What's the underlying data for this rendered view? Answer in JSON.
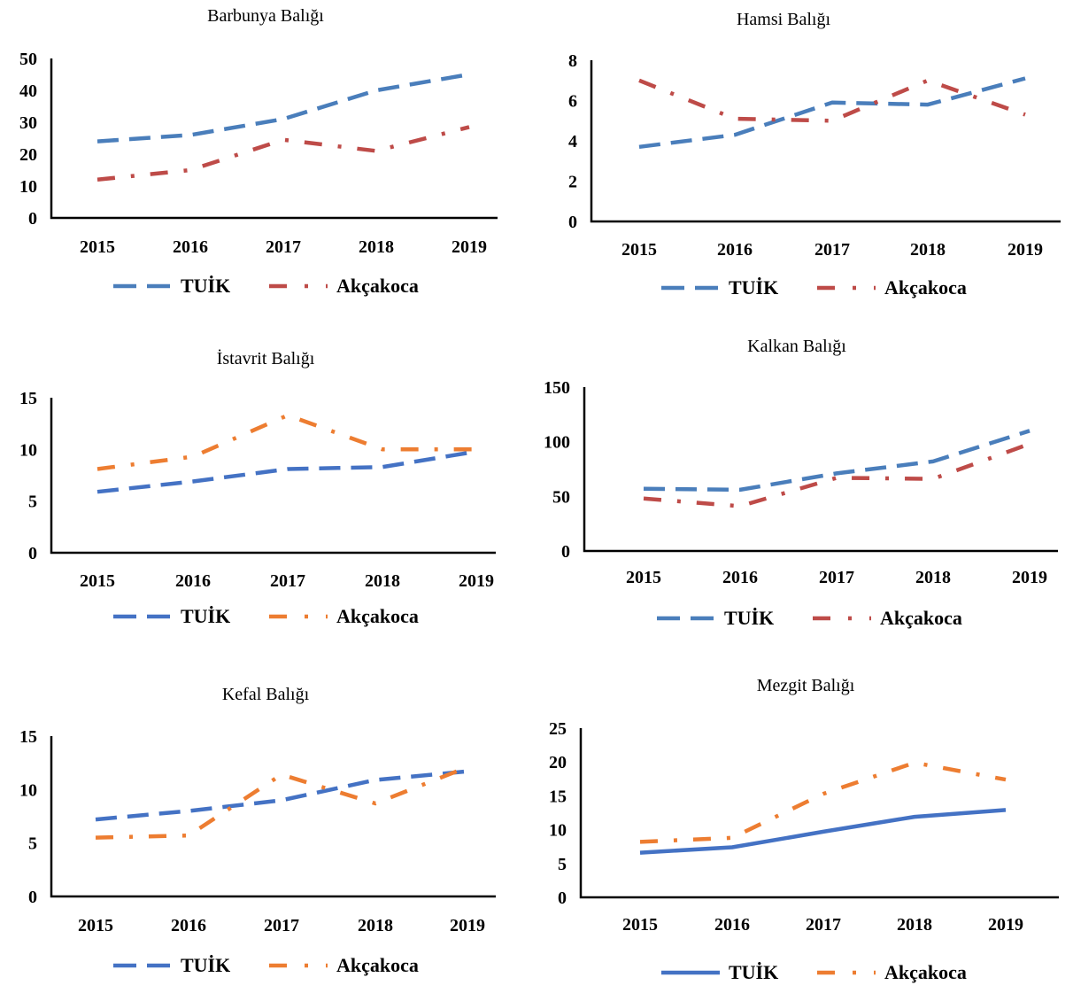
{
  "colors": {
    "blue": "#4a7ebb",
    "blue_dark": "#4472c4",
    "red": "#be4b48",
    "orange": "#ed7d31"
  },
  "chart_data": [
    {
      "type": "line",
      "title": "Barbunya Balığı",
      "categories": [
        "2015",
        "2016",
        "2017",
        "2018",
        "2019"
      ],
      "ylim": [
        0,
        50
      ],
      "yticks": [
        "0",
        "10",
        "20",
        "30",
        "40",
        "50"
      ],
      "legend_placement": "bottom",
      "series": [
        {
          "name": "TUİK",
          "values": [
            24,
            26,
            31,
            40,
            45
          ],
          "color": "#4a7ebb",
          "style": "dash"
        },
        {
          "name": "Akçakoca",
          "values": [
            12,
            15,
            24.5,
            21,
            28.5
          ],
          "color": "#be4b48",
          "style": "dashdot"
        }
      ]
    },
    {
      "type": "line",
      "title": "Hamsi Balığı",
      "categories": [
        "2015",
        "2016",
        "2017",
        "2018",
        "2019"
      ],
      "ylim": [
        0,
        8
      ],
      "yticks": [
        "0",
        "2",
        "4",
        "6",
        "8"
      ],
      "legend_placement": "bottom",
      "series": [
        {
          "name": "TUİK",
          "values": [
            3.7,
            4.3,
            5.9,
            5.8,
            7.1
          ],
          "color": "#4a7ebb",
          "style": "dash"
        },
        {
          "name": "Akçakoca",
          "values": [
            7.0,
            5.1,
            5.0,
            7.0,
            5.3
          ],
          "color": "#be4b48",
          "style": "dashdot"
        }
      ]
    },
    {
      "type": "line",
      "title": "İstavrit Balığı",
      "categories": [
        "2015",
        "2016",
        "2017",
        "2018",
        "2019"
      ],
      "ylim": [
        0,
        15
      ],
      "yticks": [
        "0",
        "5",
        "10",
        "15"
      ],
      "legend_placement": "bottom",
      "series": [
        {
          "name": "TUİK",
          "values": [
            5.9,
            6.9,
            8.1,
            8.3,
            9.8
          ],
          "color": "#4472c4",
          "style": "dash"
        },
        {
          "name": "Akçakoca",
          "values": [
            8.1,
            9.3,
            13.3,
            10.0,
            10.0
          ],
          "color": "#ed7d31",
          "style": "dashdot"
        }
      ]
    },
    {
      "type": "line",
      "title": "Kalkan Balığı",
      "categories": [
        "2015",
        "2016",
        "2017",
        "2018",
        "2019"
      ],
      "ylim": [
        0,
        150
      ],
      "yticks": [
        "0",
        "50",
        "100",
        "150"
      ],
      "legend_placement": "bottom",
      "series": [
        {
          "name": "TUİK",
          "values": [
            57,
            56,
            71,
            82,
            110
          ],
          "color": "#4a7ebb",
          "style": "dash"
        },
        {
          "name": "Akçakoca",
          "values": [
            48,
            41,
            67,
            66,
            98
          ],
          "color": "#be4b48",
          "style": "dashdot"
        }
      ]
    },
    {
      "type": "line",
      "title": "Kefal Balığı",
      "categories": [
        "2015",
        "2016",
        "2017",
        "2018",
        "2019"
      ],
      "ylim": [
        0,
        15
      ],
      "yticks": [
        "0",
        "5",
        "10",
        "15"
      ],
      "legend_placement": "bottom",
      "series": [
        {
          "name": "TUİK",
          "values": [
            7.2,
            8.0,
            9.0,
            10.9,
            11.7
          ],
          "color": "#4472c4",
          "style": "dash"
        },
        {
          "name": "Akçakoca",
          "values": [
            5.5,
            5.7,
            11.4,
            8.7,
            12.1
          ],
          "color": "#ed7d31",
          "style": "dashdot"
        }
      ]
    },
    {
      "type": "line",
      "title": "Mezgit Balığı",
      "categories": [
        "2015",
        "2016",
        "2017",
        "2018",
        "2019"
      ],
      "ylim": [
        0,
        25
      ],
      "yticks": [
        "0",
        "5",
        "10",
        "15",
        "20",
        "25"
      ],
      "legend_placement": "bottom",
      "series": [
        {
          "name": "TUİK",
          "values": [
            6.6,
            7.4,
            9.7,
            11.9,
            12.9
          ],
          "color": "#4472c4",
          "style": "solid"
        },
        {
          "name": "Akçakoca",
          "values": [
            8.2,
            8.8,
            15.3,
            19.9,
            17.4
          ],
          "color": "#ed7d31",
          "style": "dashdot"
        }
      ]
    }
  ]
}
